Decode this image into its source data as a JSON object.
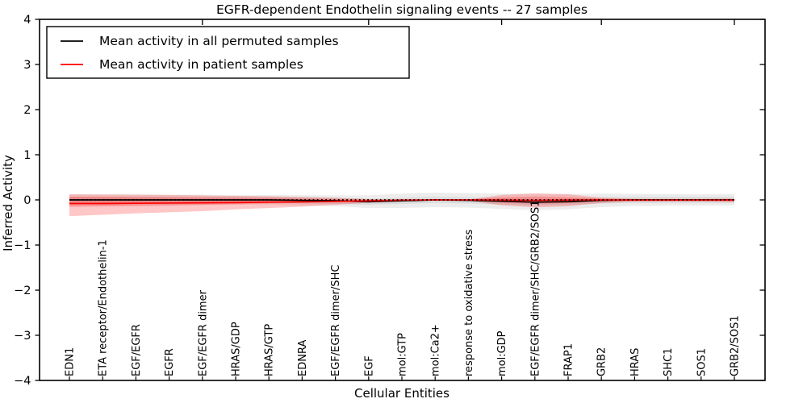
{
  "chart_data": {
    "type": "line",
    "title": "EGFR-dependent Endothelin signaling events -- 27 samples",
    "xlabel": "Cellular Entities",
    "ylabel": "Inferred Activity",
    "ylim": [
      -4,
      4
    ],
    "yticks": [
      4,
      3,
      2,
      1,
      0,
      -1,
      -2,
      -3,
      -4
    ],
    "grid": false,
    "legend_position": "upper left",
    "categories": [
      "EDN1",
      "ETA receptor/Endothelin-1",
      "EGF/EGFR",
      "EGFR",
      "EGF/EGFR dimer",
      "HRAS/GDP",
      "HRAS/GTP",
      "EDNRA",
      "EGF/EGFR dimer/SHC",
      "EGF",
      "mol:GTP",
      "mol:Ca2+",
      "response to oxidative stress",
      "mol:GDP",
      "EGF/EGFR dimer/SHC/GRB2/SOS1",
      "FRAP1",
      "GRB2",
      "HRAS",
      "SHC1",
      "SOS1",
      "GRB2/SOS1"
    ],
    "series": [
      {
        "name": "Mean activity in all permuted samples",
        "color": "#000000",
        "values": [
          0,
          0,
          0,
          0,
          0,
          0,
          0,
          -0.01,
          -0.02,
          -0.04,
          -0.02,
          0,
          -0.01,
          -0.03,
          -0.05,
          -0.04,
          -0.01,
          0,
          0,
          0,
          0
        ]
      },
      {
        "name": "Mean activity in patient samples",
        "color": "#ff0000",
        "values": [
          -0.08,
          -0.08,
          -0.075,
          -0.07,
          -0.065,
          -0.06,
          -0.05,
          -0.045,
          -0.035,
          -0.02,
          -0.005,
          0,
          0,
          -0.005,
          -0.01,
          -0.005,
          0,
          -0.005,
          -0.005,
          -0.005,
          -0.005
        ]
      }
    ],
    "zero_line": {
      "y": 0,
      "style": "dotted",
      "color": "#000000"
    },
    "bands": [
      {
        "name": "permuted-spread-outer",
        "color": "#000000",
        "opacity": 0.07,
        "upper": [
          0.12,
          0.12,
          0.12,
          0.115,
          0.115,
          0.11,
          0.11,
          0.105,
          0.1,
          0.1,
          0.14,
          0.16,
          0.15,
          0.14,
          0.13,
          0.13,
          0.14,
          0.135,
          0.13,
          0.125,
          0.125
        ],
        "lower": [
          -0.12,
          -0.12,
          -0.12,
          -0.115,
          -0.115,
          -0.11,
          -0.11,
          -0.125,
          -0.14,
          -0.18,
          -0.18,
          -0.16,
          -0.17,
          -0.2,
          -0.23,
          -0.21,
          -0.16,
          -0.135,
          -0.13,
          -0.125,
          -0.125
        ]
      },
      {
        "name": "permuted-spread-inner",
        "color": "#000000",
        "opacity": 0.07,
        "upper": [
          0.07,
          0.07,
          0.07,
          0.07,
          0.07,
          0.07,
          0.07,
          0.06,
          0.05,
          0.03,
          0.05,
          0.07,
          0.06,
          0.04,
          0.02,
          0.03,
          0.06,
          0.07,
          0.07,
          0.07,
          0.07
        ],
        "lower": [
          -0.07,
          -0.07,
          -0.07,
          -0.07,
          -0.07,
          -0.07,
          -0.07,
          -0.08,
          -0.09,
          -0.11,
          -0.09,
          -0.07,
          -0.08,
          -0.1,
          -0.12,
          -0.11,
          -0.08,
          -0.07,
          -0.07,
          -0.07,
          -0.07
        ]
      },
      {
        "name": "patient-spread-outer",
        "color": "#ff0000",
        "opacity": 0.22,
        "upper": [
          0.125,
          0.12,
          0.115,
          0.11,
          0.1,
          0.09,
          0.08,
          0.065,
          0.045,
          0.02,
          0.005,
          0.005,
          0.01,
          0.11,
          0.145,
          0.125,
          0.05,
          0.025,
          0.025,
          0.025,
          0.03
        ],
        "lower": [
          -0.36,
          -0.33,
          -0.3,
          -0.275,
          -0.25,
          -0.21,
          -0.18,
          -0.15,
          -0.11,
          -0.065,
          -0.015,
          -0.01,
          -0.02,
          -0.12,
          -0.165,
          -0.14,
          -0.07,
          -0.035,
          -0.035,
          -0.035,
          -0.045
        ]
      },
      {
        "name": "patient-spread-inner",
        "color": "#ff0000",
        "opacity": 0.22,
        "upper": [
          0.07,
          0.065,
          0.06,
          0.055,
          0.05,
          0.045,
          0.04,
          0.03,
          0.02,
          0.008,
          0.002,
          0.002,
          0.005,
          0.055,
          0.075,
          0.06,
          0.025,
          0.012,
          0.012,
          0.012,
          0.015
        ],
        "lower": [
          -0.155,
          -0.145,
          -0.135,
          -0.125,
          -0.11,
          -0.095,
          -0.08,
          -0.065,
          -0.048,
          -0.028,
          -0.006,
          -0.005,
          -0.01,
          -0.06,
          -0.085,
          -0.07,
          -0.035,
          -0.017,
          -0.017,
          -0.017,
          -0.022
        ]
      }
    ],
    "top_axis_tick_indices": [
      4,
      9,
      13,
      16,
      20
    ]
  }
}
